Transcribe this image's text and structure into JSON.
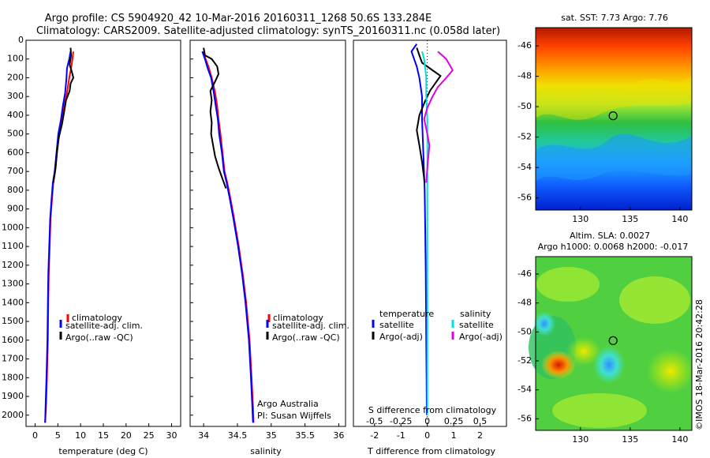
{
  "header": {
    "line1": "Argo profile: CS 5904920_42 10-Mar-2016 20160311_1268 50.6S 133.284E",
    "line2": "Climatology: CARS2009. Satellite-adjusted climatology: synTS_20160311.nc (0.058d later)"
  },
  "colors": {
    "climatology": "#ff0000",
    "satellite": "#0000ff",
    "argo": "#000000",
    "sat_salinity": "#00e0e0",
    "argo_adj_salinity": "#e000e0"
  },
  "legend_profiles": {
    "climatology": "climatology",
    "satellite": "satellite-adj. clim.",
    "argo": "Argo(..raw -QC)"
  },
  "legend_diff": {
    "temperature_title": "temperature",
    "salinity_title": "salinity",
    "t_satellite": "satellite",
    "t_argo": "Argo(-adj)",
    "s_satellite": "satellite",
    "s_argo": "Argo(-adj)"
  },
  "credits": {
    "institution": "Argo Australia",
    "pi": "PI: Susan Wijffels",
    "watermark": "©IMOS 18-Mar-2016 20:42:28"
  },
  "maps": {
    "sst_title": "sat. SST: 7.73 Argo: 7.76",
    "sla_title_1": "Altim. SLA: 0.0027",
    "sla_title_2": "Argo h1000: 0.0068 h2000: -0.017"
  },
  "chart_data": [
    {
      "type": "line",
      "title": "",
      "xlabel": "temperature (deg C)",
      "ylabel": "",
      "xlim": [
        -2,
        32
      ],
      "ylim": [
        2060,
        0
      ],
      "y_reversed": true,
      "x_ticks": [
        0,
        5,
        10,
        15,
        20,
        25,
        30
      ],
      "y_ticks": [
        0,
        100,
        200,
        300,
        400,
        500,
        600,
        700,
        800,
        900,
        1000,
        1100,
        1200,
        1300,
        1400,
        1500,
        1600,
        1700,
        1800,
        1900,
        2000
      ],
      "series": [
        {
          "name": "climatology",
          "color": "#ff0000",
          "points": [
            [
              8.4,
              60
            ],
            [
              8.2,
              100
            ],
            [
              7.9,
              150
            ],
            [
              7.5,
              200
            ],
            [
              7.0,
              280
            ],
            [
              6.4,
              350
            ],
            [
              5.9,
              420
            ],
            [
              5.3,
              500
            ],
            [
              4.8,
              600
            ],
            [
              4.4,
              700
            ],
            [
              4.0,
              760
            ],
            [
              3.7,
              850
            ],
            [
              3.4,
              950
            ],
            [
              3.2,
              1100
            ],
            [
              3.0,
              1250
            ],
            [
              2.9,
              1400
            ],
            [
              2.8,
              1600
            ],
            [
              2.6,
              1800
            ],
            [
              2.4,
              1950
            ],
            [
              2.2,
              2040
            ]
          ]
        },
        {
          "name": "satellite-adj. clim.",
          "color": "#0000ff",
          "points": [
            [
              7.8,
              60
            ],
            [
              7.5,
              100
            ],
            [
              7.0,
              150
            ],
            [
              6.9,
              200
            ],
            [
              6.6,
              280
            ],
            [
              6.1,
              350
            ],
            [
              5.7,
              420
            ],
            [
              5.1,
              500
            ],
            [
              4.7,
              600
            ],
            [
              4.3,
              700
            ],
            [
              3.9,
              760
            ],
            [
              3.6,
              850
            ],
            [
              3.3,
              950
            ],
            [
              3.1,
              1100
            ],
            [
              2.9,
              1250
            ],
            [
              2.8,
              1400
            ],
            [
              2.7,
              1600
            ],
            [
              2.5,
              1800
            ],
            [
              2.3,
              1950
            ],
            [
              2.2,
              2040
            ]
          ]
        },
        {
          "name": "Argo(..raw -QC)",
          "color": "#000000",
          "points": [
            [
              7.8,
              40
            ],
            [
              7.9,
              80
            ],
            [
              7.6,
              130
            ],
            [
              8.1,
              170
            ],
            [
              8.4,
              200
            ],
            [
              7.8,
              230
            ],
            [
              7.6,
              270
            ],
            [
              6.8,
              320
            ],
            [
              6.4,
              380
            ],
            [
              5.9,
              450
            ],
            [
              5.2,
              520
            ],
            [
              4.8,
              600
            ],
            [
              4.5,
              680
            ],
            [
              4.0,
              760
            ]
          ]
        }
      ]
    },
    {
      "type": "line",
      "title": "",
      "xlabel": "salinity",
      "ylabel": "",
      "xlim": [
        33.8,
        36.1
      ],
      "ylim": [
        2060,
        0
      ],
      "y_reversed": true,
      "x_ticks": [
        34,
        34.5,
        35,
        35.5,
        36
      ],
      "x_tick_labels": [
        "34",
        "34.5",
        "35",
        "35.5",
        "36"
      ],
      "y_ticks": [
        0,
        100,
        200,
        300,
        400,
        500,
        600,
        700,
        800,
        900,
        1000,
        1100,
        1200,
        1300,
        1400,
        1500,
        1600,
        1700,
        1800,
        1900,
        2000
      ],
      "series": [
        {
          "name": "climatology",
          "color": "#ff0000",
          "points": [
            [
              33.99,
              60
            ],
            [
              34.03,
              100
            ],
            [
              34.08,
              150
            ],
            [
              34.12,
              200
            ],
            [
              34.17,
              280
            ],
            [
              34.2,
              350
            ],
            [
              34.22,
              420
            ],
            [
              34.25,
              500
            ],
            [
              34.28,
              600
            ],
            [
              34.31,
              700
            ],
            [
              34.35,
              760
            ],
            [
              34.4,
              850
            ],
            [
              34.45,
              950
            ],
            [
              34.52,
              1100
            ],
            [
              34.58,
              1250
            ],
            [
              34.63,
              1400
            ],
            [
              34.68,
              1600
            ],
            [
              34.71,
              1800
            ],
            [
              34.73,
              1950
            ],
            [
              34.74,
              2040
            ]
          ]
        },
        {
          "name": "satellite-adj. clim.",
          "color": "#0000ff",
          "points": [
            [
              33.98,
              60
            ],
            [
              34.02,
              100
            ],
            [
              34.06,
              150
            ],
            [
              34.11,
              200
            ],
            [
              34.15,
              280
            ],
            [
              34.18,
              350
            ],
            [
              34.21,
              420
            ],
            [
              34.23,
              500
            ],
            [
              34.27,
              600
            ],
            [
              34.3,
              700
            ],
            [
              34.34,
              760
            ],
            [
              34.39,
              850
            ],
            [
              34.44,
              950
            ],
            [
              34.51,
              1100
            ],
            [
              34.57,
              1250
            ],
            [
              34.62,
              1400
            ],
            [
              34.67,
              1600
            ],
            [
              34.7,
              1800
            ],
            [
              34.72,
              1950
            ],
            [
              34.73,
              2040
            ]
          ]
        },
        {
          "name": "Argo(..raw -QC)",
          "color": "#000000",
          "points": [
            [
              34.0,
              40
            ],
            [
              34.02,
              80
            ],
            [
              34.12,
              100
            ],
            [
              34.2,
              140
            ],
            [
              34.22,
              180
            ],
            [
              34.17,
              220
            ],
            [
              34.1,
              270
            ],
            [
              34.12,
              320
            ],
            [
              34.1,
              380
            ],
            [
              34.12,
              440
            ],
            [
              34.11,
              500
            ],
            [
              34.14,
              560
            ],
            [
              34.17,
              620
            ],
            [
              34.22,
              680
            ],
            [
              34.28,
              740
            ],
            [
              34.33,
              790
            ]
          ]
        }
      ]
    },
    {
      "type": "line",
      "title": "",
      "xlabel": "T difference from climatology",
      "x2label": "S difference from climatology",
      "ylabel": "",
      "xlim": [
        -2.8,
        3.0
      ],
      "ylim": [
        2060,
        0
      ],
      "y_reversed": true,
      "x_ticks": [
        -2,
        -1,
        0,
        1,
        2
      ],
      "x2_ticks": [
        -0.5,
        -0.25,
        0,
        0.25,
        0.5
      ],
      "x2_tick_labels": [
        "-0.5",
        "-0.25",
        "0",
        "0.25",
        "0.5"
      ],
      "x2_per_x": 0.25,
      "series": [
        {
          "name": "temperature satellite",
          "axis": "T",
          "color": "#0000ff",
          "points": [
            [
              -0.4,
              20
            ],
            [
              -0.6,
              60
            ],
            [
              -0.5,
              100
            ],
            [
              -0.4,
              140
            ],
            [
              -0.3,
              200
            ],
            [
              -0.2,
              300
            ],
            [
              -0.2,
              420
            ],
            [
              -0.15,
              600
            ],
            [
              -0.1,
              800
            ],
            [
              -0.08,
              1000
            ],
            [
              -0.06,
              1200
            ],
            [
              -0.05,
              1400
            ],
            [
              -0.04,
              1600
            ],
            [
              -0.03,
              1800
            ],
            [
              -0.02,
              2000
            ]
          ]
        },
        {
          "name": "temperature Argo(-adj)",
          "axis": "T",
          "color": "#000000",
          "points": [
            [
              -0.4,
              40
            ],
            [
              -0.3,
              80
            ],
            [
              -0.2,
              120
            ],
            [
              0.2,
              160
            ],
            [
              0.5,
              190
            ],
            [
              0.3,
              230
            ],
            [
              0.1,
              270
            ],
            [
              -0.1,
              330
            ],
            [
              -0.3,
              400
            ],
            [
              -0.4,
              480
            ],
            [
              -0.3,
              560
            ],
            [
              -0.2,
              650
            ],
            [
              -0.1,
              760
            ]
          ]
        },
        {
          "name": "salinity satellite",
          "axis": "S",
          "color": "#00e0e0",
          "points": [
            [
              -0.05,
              60
            ],
            [
              -0.03,
              100
            ],
            [
              -0.02,
              150
            ],
            [
              -0.01,
              200
            ],
            [
              -0.01,
              300
            ],
            [
              0.0,
              420
            ],
            [
              0.0,
              600
            ],
            [
              0.0,
              800
            ],
            [
              0.0,
              1000
            ],
            [
              0.0,
              1400
            ],
            [
              0.0,
              1800
            ],
            [
              0.0,
              2000
            ]
          ]
        },
        {
          "name": "salinity Argo(-adj)",
          "axis": "S",
          "color": "#e000e0",
          "points": [
            [
              0.1,
              60
            ],
            [
              0.18,
              100
            ],
            [
              0.24,
              160
            ],
            [
              0.18,
              200
            ],
            [
              0.1,
              250
            ],
            [
              0.05,
              300
            ],
            [
              0.0,
              360
            ],
            [
              -0.03,
              420
            ],
            [
              0.0,
              500
            ],
            [
              0.02,
              560
            ],
            [
              0.01,
              620
            ],
            [
              0.0,
              680
            ],
            [
              -0.01,
              760
            ]
          ]
        }
      ]
    },
    {
      "type": "heatmap",
      "title": "sat. SST: 7.73 Argo: 7.76",
      "xlim": [
        125.5,
        141.2
      ],
      "ylim": [
        -56.8,
        -44.8
      ],
      "x_ticks": [
        130,
        135,
        140
      ],
      "y_ticks": [
        -46,
        -48,
        -50,
        -52,
        -54,
        -56
      ],
      "marker": {
        "lon": 133.284,
        "lat": -50.6
      }
    },
    {
      "type": "heatmap",
      "title": "Altim. SLA: 0.0027",
      "subtitle": "Argo h1000: 0.0068 h2000: -0.017",
      "xlim": [
        125.5,
        141.2
      ],
      "ylim": [
        -56.8,
        -44.8
      ],
      "x_ticks": [
        130,
        135,
        140
      ],
      "y_ticks": [
        -46,
        -48,
        -50,
        -52,
        -54,
        -56
      ],
      "marker": {
        "lon": 133.284,
        "lat": -50.6
      }
    }
  ]
}
